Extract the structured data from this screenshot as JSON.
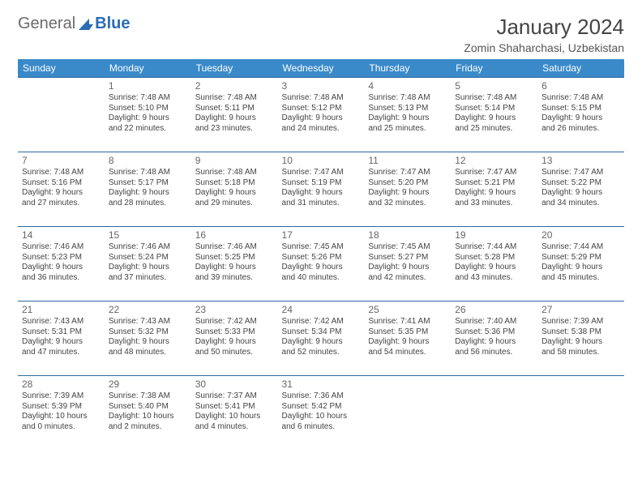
{
  "logo": {
    "part1": "General",
    "part2": "Blue"
  },
  "title": "January 2024",
  "location": "Zomin Shaharchasi, Uzbekistan",
  "colors": {
    "header_bg": "#3a8ac9",
    "row_border": "#2f6aa3",
    "text": "#444444",
    "logo_gray": "#6a6a6a",
    "logo_blue": "#2a6db5"
  },
  "weekdays": [
    "Sunday",
    "Monday",
    "Tuesday",
    "Wednesday",
    "Thursday",
    "Friday",
    "Saturday"
  ],
  "weeks": [
    [
      null,
      {
        "n": "1",
        "sr": "Sunrise: 7:48 AM",
        "ss": "Sunset: 5:10 PM",
        "d1": "Daylight: 9 hours",
        "d2": "and 22 minutes."
      },
      {
        "n": "2",
        "sr": "Sunrise: 7:48 AM",
        "ss": "Sunset: 5:11 PM",
        "d1": "Daylight: 9 hours",
        "d2": "and 23 minutes."
      },
      {
        "n": "3",
        "sr": "Sunrise: 7:48 AM",
        "ss": "Sunset: 5:12 PM",
        "d1": "Daylight: 9 hours",
        "d2": "and 24 minutes."
      },
      {
        "n": "4",
        "sr": "Sunrise: 7:48 AM",
        "ss": "Sunset: 5:13 PM",
        "d1": "Daylight: 9 hours",
        "d2": "and 25 minutes."
      },
      {
        "n": "5",
        "sr": "Sunrise: 7:48 AM",
        "ss": "Sunset: 5:14 PM",
        "d1": "Daylight: 9 hours",
        "d2": "and 25 minutes."
      },
      {
        "n": "6",
        "sr": "Sunrise: 7:48 AM",
        "ss": "Sunset: 5:15 PM",
        "d1": "Daylight: 9 hours",
        "d2": "and 26 minutes."
      }
    ],
    [
      {
        "n": "7",
        "sr": "Sunrise: 7:48 AM",
        "ss": "Sunset: 5:16 PM",
        "d1": "Daylight: 9 hours",
        "d2": "and 27 minutes."
      },
      {
        "n": "8",
        "sr": "Sunrise: 7:48 AM",
        "ss": "Sunset: 5:17 PM",
        "d1": "Daylight: 9 hours",
        "d2": "and 28 minutes."
      },
      {
        "n": "9",
        "sr": "Sunrise: 7:48 AM",
        "ss": "Sunset: 5:18 PM",
        "d1": "Daylight: 9 hours",
        "d2": "and 29 minutes."
      },
      {
        "n": "10",
        "sr": "Sunrise: 7:47 AM",
        "ss": "Sunset: 5:19 PM",
        "d1": "Daylight: 9 hours",
        "d2": "and 31 minutes."
      },
      {
        "n": "11",
        "sr": "Sunrise: 7:47 AM",
        "ss": "Sunset: 5:20 PM",
        "d1": "Daylight: 9 hours",
        "d2": "and 32 minutes."
      },
      {
        "n": "12",
        "sr": "Sunrise: 7:47 AM",
        "ss": "Sunset: 5:21 PM",
        "d1": "Daylight: 9 hours",
        "d2": "and 33 minutes."
      },
      {
        "n": "13",
        "sr": "Sunrise: 7:47 AM",
        "ss": "Sunset: 5:22 PM",
        "d1": "Daylight: 9 hours",
        "d2": "and 34 minutes."
      }
    ],
    [
      {
        "n": "14",
        "sr": "Sunrise: 7:46 AM",
        "ss": "Sunset: 5:23 PM",
        "d1": "Daylight: 9 hours",
        "d2": "and 36 minutes."
      },
      {
        "n": "15",
        "sr": "Sunrise: 7:46 AM",
        "ss": "Sunset: 5:24 PM",
        "d1": "Daylight: 9 hours",
        "d2": "and 37 minutes."
      },
      {
        "n": "16",
        "sr": "Sunrise: 7:46 AM",
        "ss": "Sunset: 5:25 PM",
        "d1": "Daylight: 9 hours",
        "d2": "and 39 minutes."
      },
      {
        "n": "17",
        "sr": "Sunrise: 7:45 AM",
        "ss": "Sunset: 5:26 PM",
        "d1": "Daylight: 9 hours",
        "d2": "and 40 minutes."
      },
      {
        "n": "18",
        "sr": "Sunrise: 7:45 AM",
        "ss": "Sunset: 5:27 PM",
        "d1": "Daylight: 9 hours",
        "d2": "and 42 minutes."
      },
      {
        "n": "19",
        "sr": "Sunrise: 7:44 AM",
        "ss": "Sunset: 5:28 PM",
        "d1": "Daylight: 9 hours",
        "d2": "and 43 minutes."
      },
      {
        "n": "20",
        "sr": "Sunrise: 7:44 AM",
        "ss": "Sunset: 5:29 PM",
        "d1": "Daylight: 9 hours",
        "d2": "and 45 minutes."
      }
    ],
    [
      {
        "n": "21",
        "sr": "Sunrise: 7:43 AM",
        "ss": "Sunset: 5:31 PM",
        "d1": "Daylight: 9 hours",
        "d2": "and 47 minutes."
      },
      {
        "n": "22",
        "sr": "Sunrise: 7:43 AM",
        "ss": "Sunset: 5:32 PM",
        "d1": "Daylight: 9 hours",
        "d2": "and 48 minutes."
      },
      {
        "n": "23",
        "sr": "Sunrise: 7:42 AM",
        "ss": "Sunset: 5:33 PM",
        "d1": "Daylight: 9 hours",
        "d2": "and 50 minutes."
      },
      {
        "n": "24",
        "sr": "Sunrise: 7:42 AM",
        "ss": "Sunset: 5:34 PM",
        "d1": "Daylight: 9 hours",
        "d2": "and 52 minutes."
      },
      {
        "n": "25",
        "sr": "Sunrise: 7:41 AM",
        "ss": "Sunset: 5:35 PM",
        "d1": "Daylight: 9 hours",
        "d2": "and 54 minutes."
      },
      {
        "n": "26",
        "sr": "Sunrise: 7:40 AM",
        "ss": "Sunset: 5:36 PM",
        "d1": "Daylight: 9 hours",
        "d2": "and 56 minutes."
      },
      {
        "n": "27",
        "sr": "Sunrise: 7:39 AM",
        "ss": "Sunset: 5:38 PM",
        "d1": "Daylight: 9 hours",
        "d2": "and 58 minutes."
      }
    ],
    [
      {
        "n": "28",
        "sr": "Sunrise: 7:39 AM",
        "ss": "Sunset: 5:39 PM",
        "d1": "Daylight: 10 hours",
        "d2": "and 0 minutes."
      },
      {
        "n": "29",
        "sr": "Sunrise: 7:38 AM",
        "ss": "Sunset: 5:40 PM",
        "d1": "Daylight: 10 hours",
        "d2": "and 2 minutes."
      },
      {
        "n": "30",
        "sr": "Sunrise: 7:37 AM",
        "ss": "Sunset: 5:41 PM",
        "d1": "Daylight: 10 hours",
        "d2": "and 4 minutes."
      },
      {
        "n": "31",
        "sr": "Sunrise: 7:36 AM",
        "ss": "Sunset: 5:42 PM",
        "d1": "Daylight: 10 hours",
        "d2": "and 6 minutes."
      },
      null,
      null,
      null
    ]
  ]
}
